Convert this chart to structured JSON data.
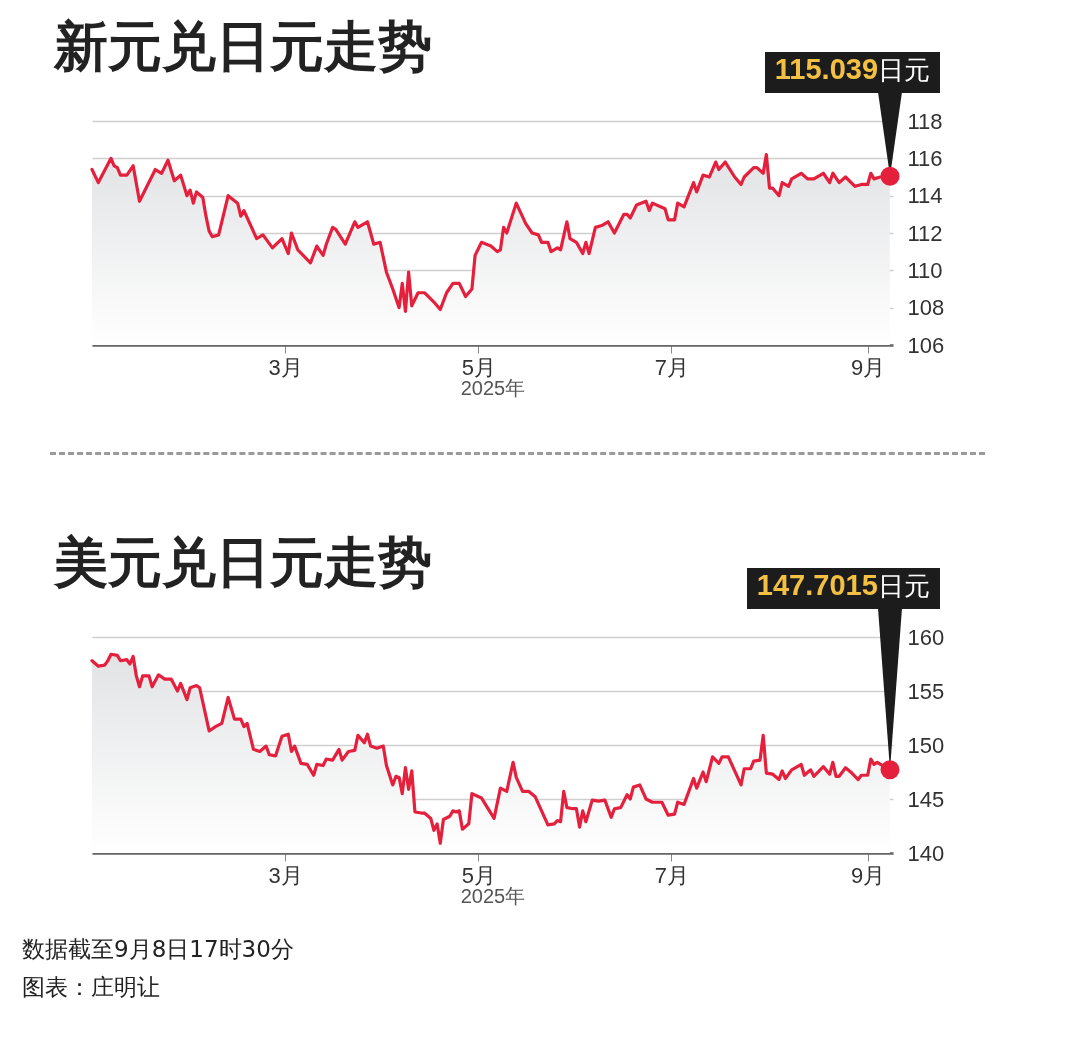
{
  "chart_data": [
    {
      "type": "area",
      "title": "新元兑日元走势",
      "xlabel": "2025年",
      "xlim": [
        "2024-12-30",
        "2025-09-09"
      ],
      "xticks": [
        {
          "value": "2025-03-01",
          "label": "3月"
        },
        {
          "value": "2025-05-01",
          "label": "5月"
        },
        {
          "value": "2025-07-01",
          "label": "7月"
        },
        {
          "value": "2025-09-01",
          "label": "9月"
        }
      ],
      "ylim": [
        106,
        118
      ],
      "yticks": [
        106,
        108,
        110,
        112,
        114,
        116,
        118
      ],
      "grid": "y",
      "x": [
        "2024-12-30",
        "2025-01-01",
        "2025-01-05",
        "2025-01-06",
        "2025-01-07",
        "2025-01-08",
        "2025-01-10",
        "2025-01-12",
        "2025-01-14",
        "2025-01-19",
        "2025-01-21",
        "2025-01-23",
        "2025-01-25",
        "2025-01-27",
        "2025-01-29",
        "2025-01-30",
        "2025-01-31",
        "2025-02-01",
        "2025-02-03",
        "2025-02-04",
        "2025-02-05",
        "2025-02-06",
        "2025-02-08",
        "2025-02-11",
        "2025-02-14",
        "2025-02-15",
        "2025-02-16",
        "2025-02-20",
        "2025-02-22",
        "2025-02-25",
        "2025-02-28",
        "2025-03-02",
        "2025-03-03",
        "2025-03-05",
        "2025-03-09",
        "2025-03-11",
        "2025-03-13",
        "2025-03-14",
        "2025-03-16",
        "2025-03-17",
        "2025-03-20",
        "2025-03-23",
        "2025-03-24",
        "2025-03-27",
        "2025-03-29",
        "2025-03-31",
        "2025-04-02",
        "2025-04-04",
        "2025-04-06",
        "2025-04-07",
        "2025-04-08",
        "2025-04-09",
        "2025-04-10",
        "2025-04-12",
        "2025-04-14",
        "2025-04-17",
        "2025-04-19",
        "2025-04-21",
        "2025-04-23",
        "2025-04-25",
        "2025-04-27",
        "2025-04-29",
        "2025-04-30",
        "2025-05-02",
        "2025-05-05",
        "2025-05-07",
        "2025-05-08",
        "2025-05-09",
        "2025-05-10",
        "2025-05-13",
        "2025-05-16",
        "2025-05-18",
        "2025-05-20",
        "2025-05-21",
        "2025-05-23",
        "2025-05-24",
        "2025-05-26",
        "2025-05-27",
        "2025-05-29",
        "2025-05-30",
        "2025-06-01",
        "2025-06-03",
        "2025-06-04",
        "2025-06-05",
        "2025-06-07",
        "2025-06-09",
        "2025-06-11",
        "2025-06-13",
        "2025-06-16",
        "2025-06-17",
        "2025-06-18",
        "2025-06-20",
        "2025-06-23",
        "2025-06-24",
        "2025-06-25",
        "2025-06-29",
        "2025-06-30",
        "2025-07-02",
        "2025-07-03",
        "2025-07-05",
        "2025-07-08",
        "2025-07-09",
        "2025-07-11",
        "2025-07-13",
        "2025-07-15",
        "2025-07-16",
        "2025-07-18",
        "2025-07-21",
        "2025-07-23",
        "2025-07-24",
        "2025-07-27",
        "2025-07-28",
        "2025-07-30",
        "2025-07-31",
        "2025-08-01",
        "2025-08-02",
        "2025-08-04",
        "2025-08-05",
        "2025-08-07",
        "2025-08-08",
        "2025-08-11",
        "2025-08-13",
        "2025-08-15",
        "2025-08-18",
        "2025-08-20",
        "2025-08-21",
        "2025-08-23",
        "2025-08-25",
        "2025-08-28",
        "2025-08-30",
        "2025-09-01",
        "2025-09-02",
        "2025-09-03",
        "2025-09-05",
        "2025-09-08"
      ],
      "series": [
        {
          "color": "#e4203d",
          "values": [
            115.4,
            114.7,
            116.0,
            115.6,
            115.5,
            115.1,
            115.1,
            115.6,
            113.7,
            115.4,
            115.2,
            115.9,
            114.8,
            115.1,
            114.0,
            114.3,
            113.6,
            114.2,
            113.9,
            112.9,
            112.1,
            111.8,
            111.9,
            114.0,
            113.6,
            112.9,
            113.2,
            111.7,
            111.9,
            111.2,
            111.7,
            110.9,
            112.0,
            111.1,
            110.4,
            111.3,
            110.8,
            111.4,
            112.3,
            112.2,
            111.4,
            112.6,
            112.3,
            112.6,
            111.4,
            111.5,
            109.9,
            109.0,
            108.0,
            109.3,
            107.8,
            109.9,
            108.1,
            108.8,
            108.8,
            108.3,
            107.9,
            108.8,
            109.3,
            109.3,
            108.6,
            109.0,
            110.8,
            111.5,
            111.3,
            111.0,
            111.1,
            112.3,
            112.0,
            113.6,
            112.5,
            112.0,
            111.9,
            111.5,
            111.5,
            111.0,
            111.2,
            111.1,
            112.6,
            111.7,
            111.5,
            110.9,
            111.5,
            110.9,
            112.3,
            112.4,
            112.6,
            112.0,
            113.0,
            113.0,
            112.8,
            113.5,
            113.7,
            113.2,
            113.6,
            113.3,
            112.7,
            112.7,
            113.6,
            113.4,
            114.7,
            114.2,
            115.1,
            115.0,
            115.8,
            115.4,
            115.8,
            115.0,
            114.6,
            115.0,
            115.5,
            115.5,
            115.2,
            116.2,
            114.4,
            114.4,
            114.0,
            114.7,
            114.5,
            114.9,
            115.2,
            114.9,
            114.9,
            115.2,
            114.7,
            115.2,
            114.7,
            115.0,
            114.5,
            114.6,
            114.6,
            115.2,
            114.9,
            115.0,
            115.039
          ]
        }
      ],
      "annotations": [
        {
          "text": "115.039日元",
          "x": "2025-09-08",
          "y": 115.039
        }
      ]
    },
    {
      "type": "area",
      "title": "美元兑日元走势",
      "xlabel": "2025年",
      "xlim": [
        "2024-12-30",
        "2025-09-09"
      ],
      "xticks": [
        {
          "value": "2025-03-01",
          "label": "3月"
        },
        {
          "value": "2025-05-01",
          "label": "5月"
        },
        {
          "value": "2025-07-01",
          "label": "7月"
        },
        {
          "value": "2025-09-01",
          "label": "9月"
        }
      ],
      "ylim": [
        140,
        160
      ],
      "yticks": [
        140,
        145,
        150,
        155,
        160
      ],
      "grid": "y",
      "x": [
        "2024-12-30",
        "2025-01-01",
        "2025-01-03",
        "2025-01-04",
        "2025-01-05",
        "2025-01-07",
        "2025-01-08",
        "2025-01-10",
        "2025-01-11",
        "2025-01-12",
        "2025-01-13",
        "2025-01-14",
        "2025-01-15",
        "2025-01-17",
        "2025-01-18",
        "2025-01-20",
        "2025-01-22",
        "2025-01-24",
        "2025-01-26",
        "2025-01-27",
        "2025-01-29",
        "2025-01-30",
        "2025-02-01",
        "2025-02-02",
        "2025-02-05",
        "2025-02-07",
        "2025-02-09",
        "2025-02-11",
        "2025-02-13",
        "2025-02-15",
        "2025-02-16",
        "2025-02-17",
        "2025-02-19",
        "2025-02-21",
        "2025-02-23",
        "2025-02-24",
        "2025-02-26",
        "2025-02-28",
        "2025-03-02",
        "2025-03-03",
        "2025-03-04",
        "2025-03-06",
        "2025-03-08",
        "2025-03-10",
        "2025-03-11",
        "2025-03-13",
        "2025-03-14",
        "2025-03-16",
        "2025-03-18",
        "2025-03-19",
        "2025-03-21",
        "2025-03-23",
        "2025-03-24",
        "2025-03-26",
        "2025-03-27",
        "2025-03-28",
        "2025-03-30",
        "2025-04-01",
        "2025-04-02",
        "2025-04-04",
        "2025-04-05",
        "2025-04-06",
        "2025-04-07",
        "2025-04-08",
        "2025-04-09",
        "2025-04-10",
        "2025-04-11",
        "2025-04-13",
        "2025-04-14",
        "2025-04-16",
        "2025-04-17",
        "2025-04-18",
        "2025-04-19",
        "2025-04-20",
        "2025-04-22",
        "2025-04-23",
        "2025-04-24",
        "2025-04-25",
        "2025-04-26",
        "2025-04-28",
        "2025-04-29",
        "2025-05-02",
        "2025-05-06",
        "2025-05-08",
        "2025-05-10",
        "2025-05-12",
        "2025-05-13",
        "2025-05-15",
        "2025-05-17",
        "2025-05-19",
        "2025-05-21",
        "2025-05-23",
        "2025-05-25",
        "2025-05-26",
        "2025-05-27",
        "2025-05-28",
        "2025-05-29",
        "2025-05-31",
        "2025-06-01",
        "2025-06-02",
        "2025-06-03",
        "2025-06-04",
        "2025-06-06",
        "2025-06-08",
        "2025-06-10",
        "2025-06-12",
        "2025-06-13",
        "2025-06-15",
        "2025-06-17",
        "2025-06-18",
        "2025-06-19",
        "2025-06-21",
        "2025-06-23",
        "2025-06-25",
        "2025-06-28",
        "2025-06-30",
        "2025-07-02",
        "2025-07-03",
        "2025-07-05",
        "2025-07-08",
        "2025-07-09",
        "2025-07-11",
        "2025-07-12",
        "2025-07-14",
        "2025-07-16",
        "2025-07-17",
        "2025-07-19",
        "2025-07-21",
        "2025-07-23",
        "2025-07-24",
        "2025-07-26",
        "2025-07-27",
        "2025-07-29",
        "2025-07-30",
        "2025-07-31",
        "2025-08-02",
        "2025-08-04",
        "2025-08-05",
        "2025-08-06",
        "2025-08-08",
        "2025-08-11",
        "2025-08-12",
        "2025-08-14",
        "2025-08-15",
        "2025-08-18",
        "2025-08-20",
        "2025-08-21",
        "2025-08-22",
        "2025-08-23",
        "2025-08-25",
        "2025-08-27",
        "2025-08-29",
        "2025-08-30",
        "2025-09-01",
        "2025-09-02",
        "2025-09-03",
        "2025-09-04",
        "2025-09-08"
      ],
      "series": [
        {
          "color": "#e4203d",
          "values": [
            157.8,
            157.3,
            157.4,
            157.8,
            158.4,
            158.3,
            157.8,
            157.9,
            157.5,
            158.2,
            156.4,
            155.4,
            156.4,
            156.4,
            155.4,
            156.5,
            156.1,
            156.1,
            155.0,
            155.7,
            154.2,
            155.3,
            155.5,
            155.3,
            151.3,
            151.7,
            152.0,
            154.4,
            152.4,
            152.4,
            151.7,
            152.0,
            149.6,
            149.4,
            149.9,
            149.1,
            149.0,
            150.8,
            151.0,
            149.4,
            149.9,
            148.3,
            148.2,
            147.2,
            148.2,
            148.1,
            148.7,
            148.6,
            149.6,
            148.6,
            149.4,
            149.5,
            150.9,
            150.2,
            151.0,
            149.9,
            149.7,
            149.9,
            148.1,
            146.3,
            147.1,
            147.0,
            145.5,
            147.9,
            145.9,
            147.6,
            143.8,
            143.7,
            143.7,
            143.2,
            142.1,
            142.7,
            140.9,
            143.1,
            143.4,
            143.9,
            143.8,
            143.9,
            142.2,
            142.7,
            145.5,
            145.1,
            143.2,
            146.0,
            145.7,
            148.4,
            147.0,
            145.7,
            145.7,
            145.2,
            143.9,
            142.6,
            142.7,
            143.0,
            142.9,
            145.7,
            144.2,
            144.1,
            144.1,
            142.4,
            143.9,
            142.9,
            144.9,
            144.8,
            144.9,
            143.3,
            144.1,
            144.2,
            145.4,
            145.0,
            146.1,
            146.3,
            145.0,
            144.7,
            144.7,
            143.5,
            143.6,
            144.7,
            144.5,
            146.9,
            146.0,
            147.5,
            146.6,
            148.9,
            148.3,
            148.9,
            148.9,
            147.6,
            146.3,
            147.8,
            147.8,
            148.5,
            148.6,
            150.9,
            147.4,
            147.3,
            146.8,
            147.6,
            146.9,
            147.7,
            148.2,
            147.2,
            147.7,
            147.1,
            148.0,
            147.3,
            148.4,
            147.1,
            147.1,
            147.9,
            147.4,
            146.8,
            147.2,
            147.2,
            148.7,
            148.2,
            148.4,
            147.7015
          ]
        }
      ],
      "annotations": [
        {
          "text": "147.7015日元",
          "x": "2025-09-08",
          "y": 147.7015
        },
        "数据截至9月8日17时30分",
        "图表：庄明让"
      ]
    }
  ]
}
